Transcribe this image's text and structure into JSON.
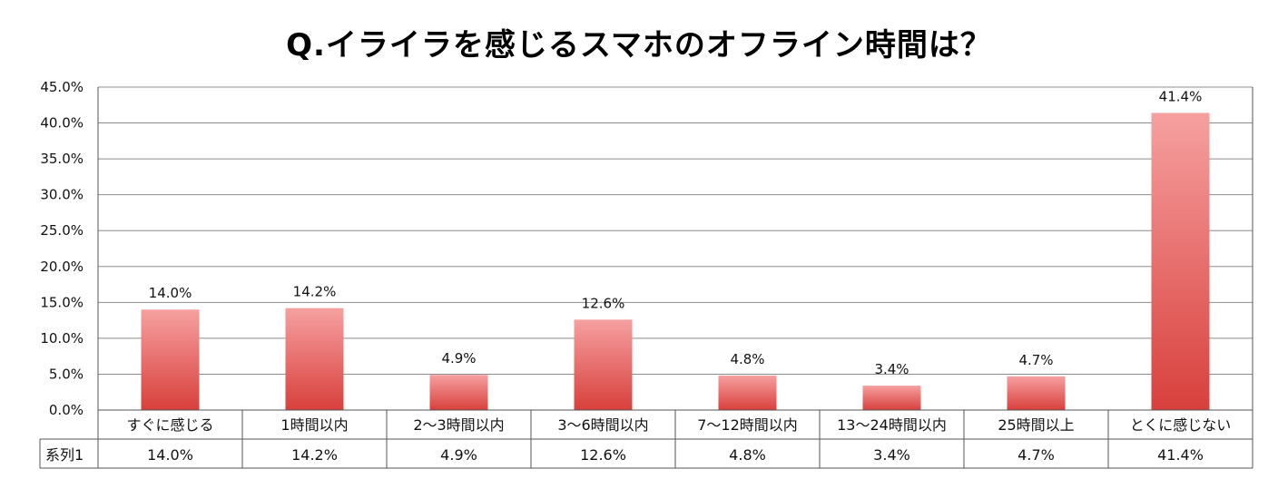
{
  "chart_data": {
    "type": "bar",
    "title": "Q.イライラを感じるスマホのオフライン時間は？",
    "categories": [
      "すぐに感じる",
      "1時間以内",
      "2〜3時間以内",
      "3〜6時間以内",
      "7〜12時間以内",
      "13〜24時間以内",
      "25時間以上",
      "とくに感じない"
    ],
    "series": [
      {
        "name": "系列1",
        "values": [
          14.0,
          14.2,
          4.9,
          12.6,
          4.8,
          3.4,
          4.7,
          41.4
        ]
      }
    ],
    "data_labels": [
      "14.0%",
      "14.2%",
      "4.9%",
      "12.6%",
      "4.8%",
      "3.4%",
      "4.7%",
      "41.4%"
    ],
    "y_ticks": [
      "0.0%",
      "5.0%",
      "10.0%",
      "15.0%",
      "20.0%",
      "25.0%",
      "30.0%",
      "35.0%",
      "40.0%",
      "45.0%"
    ],
    "ylim": [
      0,
      45
    ],
    "grid": true,
    "legend": "data-table",
    "colors": {
      "bar_top": "#f6a0a0",
      "bar_bottom": "#d8403c",
      "grid": "#8c8c8c"
    }
  }
}
